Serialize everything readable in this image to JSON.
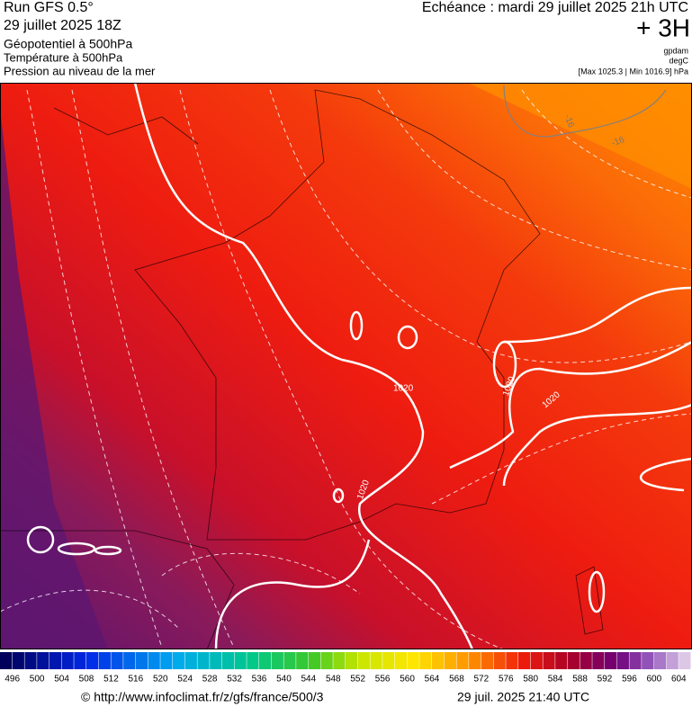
{
  "header": {
    "run": "Run GFS 0.5°",
    "run_date": "29 juillet 2025 18Z",
    "layer1": "Géopotentiel à 500hPa",
    "layer2": "Température à 500hPa",
    "layer3": "Pression au niveau de la mer",
    "echeance": "Echéance : mardi 29 juillet 2025 21h UTC",
    "offset": "+ 3H",
    "unit1": "gpdam",
    "unit2": "degC",
    "range": "[Max 1025.3 | Min 1016.9] hPa"
  },
  "map": {
    "contour_labels": [
      "1020",
      "1020",
      "1020",
      "1020",
      "-16",
      "-16"
    ]
  },
  "colorbar": {
    "labels": [
      496,
      500,
      504,
      508,
      512,
      516,
      520,
      524,
      528,
      532,
      536,
      540,
      544,
      548,
      552,
      556,
      560,
      564,
      568,
      572,
      576,
      580,
      584,
      588,
      592,
      596,
      600,
      604
    ]
  },
  "footer": {
    "source": "© http://www.infoclimat.fr/z/gfs/france/500/3",
    "timestamp": "29 juil. 2025 21:40 UTC"
  }
}
